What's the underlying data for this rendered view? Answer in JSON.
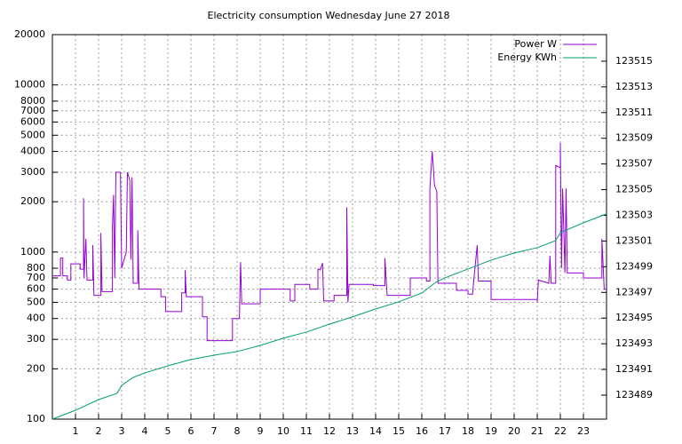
{
  "chart_data": {
    "type": "line",
    "title": "Electricity consumption Wednesday June 27 2018",
    "xlim": [
      0,
      24
    ],
    "xticks": [
      1,
      2,
      3,
      4,
      5,
      6,
      7,
      8,
      9,
      10,
      11,
      12,
      13,
      14,
      15,
      16,
      17,
      18,
      19,
      20,
      21,
      22,
      23
    ],
    "ylim": [
      100,
      20000
    ],
    "yscale": "log",
    "yticks": [
      100,
      200,
      300,
      400,
      500,
      600,
      700,
      800,
      1000,
      2000,
      3000,
      4000,
      5000,
      6000,
      7000,
      8000,
      10000,
      20000
    ],
    "y2lim": [
      123487.13,
      123517.07
    ],
    "y2ticks": [
      123489,
      123491,
      123493,
      123495,
      123497,
      123499,
      123501,
      123503,
      123505,
      123507,
      123509,
      123511,
      123513,
      123515
    ],
    "grid": true,
    "legend": "top-right",
    "series": [
      {
        "name": "Power W",
        "color": "#9400d3",
        "x": [
          0,
          0.35,
          0.35,
          0.45,
          0.45,
          0.65,
          0.65,
          0.8,
          0.8,
          1.2,
          1.2,
          1.35,
          1.35,
          1.37,
          1.45,
          1.5,
          1.75,
          1.75,
          1.8,
          2.1,
          2.1,
          2.15,
          2.6,
          2.6,
          2.65,
          2.7,
          2.75,
          2.95,
          2.95,
          3.0,
          3.2,
          3.25,
          3.35,
          3.4,
          3.45,
          3.5,
          3.7,
          3.7,
          3.75,
          4.7,
          4.7,
          4.9,
          4.9,
          5.6,
          5.6,
          5.75,
          5.75,
          5.8,
          6.5,
          6.5,
          6.7,
          6.7,
          7.8,
          7.8,
          8.1,
          8.15,
          8.2,
          9,
          9,
          10.3,
          10.3,
          10.5,
          10.5,
          11.15,
          11.15,
          11.5,
          11.5,
          11.6,
          11.7,
          11.75,
          12.2,
          12.2,
          12.75,
          12.75,
          12.8,
          12.85,
          13.9,
          13.9,
          14.4,
          14.4,
          14.5,
          15.5,
          15.5,
          16.2,
          16.2,
          16.35,
          16.35,
          16.45,
          16.5,
          16.55,
          16.65,
          16.7,
          17.5,
          17.5,
          18,
          18,
          18.2,
          18.25,
          18.4,
          18.45,
          19,
          19,
          21,
          21,
          21.05,
          21.5,
          21.55,
          21.6,
          21.8,
          21.8,
          22,
          22,
          22.05,
          22.1,
          22.2,
          22.25,
          22.3,
          23,
          23,
          23.8,
          23.8,
          23.9,
          24
        ],
        "values": [
          720,
          720,
          920,
          920,
          720,
          720,
          680,
          680,
          850,
          850,
          790,
          790,
          2100,
          700,
          1200,
          680,
          680,
          1100,
          550,
          550,
          1300,
          580,
          580,
          1400,
          2200,
          700,
          3000,
          3000,
          2900,
          800,
          1000,
          3000,
          2700,
          900,
          2800,
          650,
          650,
          1350,
          600,
          600,
          540,
          540,
          440,
          440,
          570,
          570,
          780,
          540,
          540,
          410,
          410,
          295,
          295,
          400,
          400,
          870,
          490,
          490,
          600,
          600,
          510,
          510,
          640,
          640,
          600,
          600,
          790,
          780,
          860,
          510,
          510,
          550,
          550,
          1850,
          500,
          640,
          640,
          630,
          630,
          920,
          550,
          550,
          700,
          700,
          670,
          670,
          2400,
          4000,
          3200,
          2500,
          2300,
          650,
          650,
          590,
          590,
          560,
          560,
          680,
          1100,
          670,
          670,
          520,
          520,
          500,
          680,
          650,
          950,
          650,
          650,
          3300,
          3200,
          4500,
          800,
          2400,
          750,
          2400,
          750,
          750,
          700,
          700,
          1200,
          600,
          600
        ]
      },
      {
        "name": "Energy KWh",
        "color": "#009e73",
        "axis": "y2",
        "x": [
          0,
          1,
          2,
          2.8,
          3,
          3.5,
          4,
          5,
          6,
          7,
          8,
          9,
          10,
          11,
          12,
          13,
          14,
          15,
          16,
          16.6,
          17,
          18,
          19,
          20,
          21,
          21.8,
          22,
          23,
          24
        ],
        "values": [
          123487.13,
          123487.82,
          123488.65,
          123489.14,
          123489.76,
          123490.38,
          123490.73,
          123491.28,
          123491.77,
          123492.11,
          123492.39,
          123492.87,
          123493.43,
          123493.91,
          123494.53,
          123495.09,
          123495.71,
          123496.26,
          123496.95,
          123497.78,
          123498.13,
          123498.82,
          123499.51,
          123500.07,
          123500.48,
          123501.03,
          123501.66,
          123502.42,
          123503.11
        ]
      }
    ]
  }
}
